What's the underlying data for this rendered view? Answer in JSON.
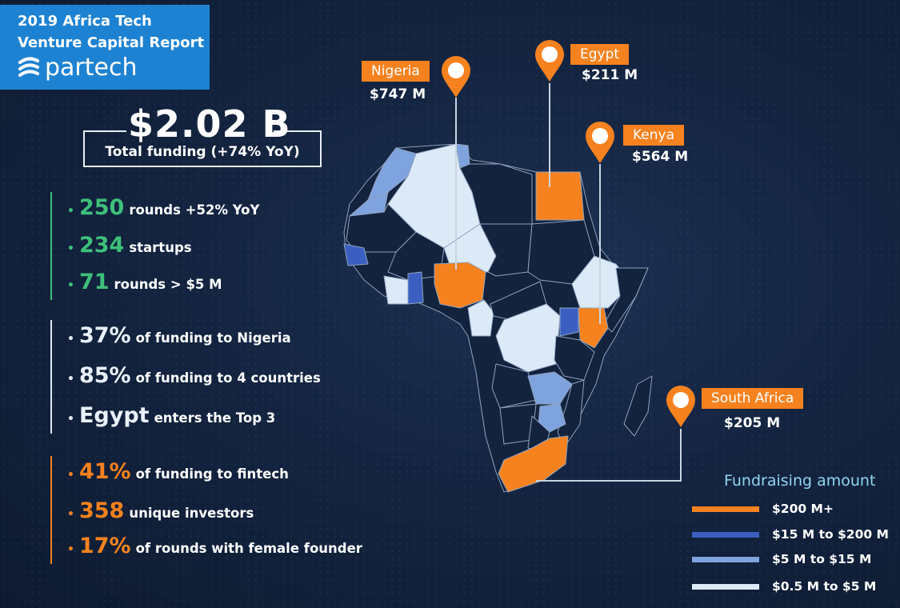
{
  "header": {
    "line1": "2019 Africa Tech",
    "line2": "Venture Capital Report",
    "brand": "partech"
  },
  "total": {
    "amount": "$2.02 B",
    "subtitle": "Total funding (+74% YoY)"
  },
  "stats_group1": [
    {
      "bullet": "•",
      "value": "250",
      "text": "rounds +52% YoY"
    },
    {
      "bullet": "•",
      "value": "234",
      "text": "startups"
    },
    {
      "bullet": "•",
      "value": "71",
      "text": "rounds > $5 M"
    }
  ],
  "stats_group2": [
    {
      "bullet": "•",
      "value": "37%",
      "text": "of funding to Nigeria"
    },
    {
      "bullet": "•",
      "value": "85%",
      "text": "of funding to 4 countries"
    },
    {
      "bullet": "•",
      "value": "Egypt",
      "text": "enters the Top 3"
    }
  ],
  "stats_group3": [
    {
      "bullet": "•",
      "value": "41%",
      "text": "of funding to fintech"
    },
    {
      "bullet": "•",
      "value": "358",
      "text": "unique investors"
    },
    {
      "bullet": "•",
      "value": "17%",
      "text": "of rounds with female founder"
    }
  ],
  "markers": [
    {
      "country": "Nigeria",
      "amount": "$747 M"
    },
    {
      "country": "Egypt",
      "amount": "$211 M"
    },
    {
      "country": "Kenya",
      "amount": "$564 M"
    },
    {
      "country": "South Africa",
      "amount": "$205 M"
    }
  ],
  "legend": {
    "title": "Fundraising amount",
    "items": [
      {
        "label": "$200 M+",
        "color": "#f6821f"
      },
      {
        "label": "$15 M to $200 M",
        "color": "#3b5fc0"
      },
      {
        "label": "$5 M to $15 M",
        "color": "#7ea3de"
      },
      {
        "label": "$0.5 M to $5 M",
        "color": "#dceaf8"
      }
    ]
  },
  "colors": {
    "orange": "#f6821f",
    "dark_blue": "#3b5fc0",
    "mid_blue": "#7ea3de",
    "light_blue": "#dceaf8",
    "no_data": "#13223d",
    "brand_blue": "#1e82d2",
    "green": "#3ec07a"
  }
}
